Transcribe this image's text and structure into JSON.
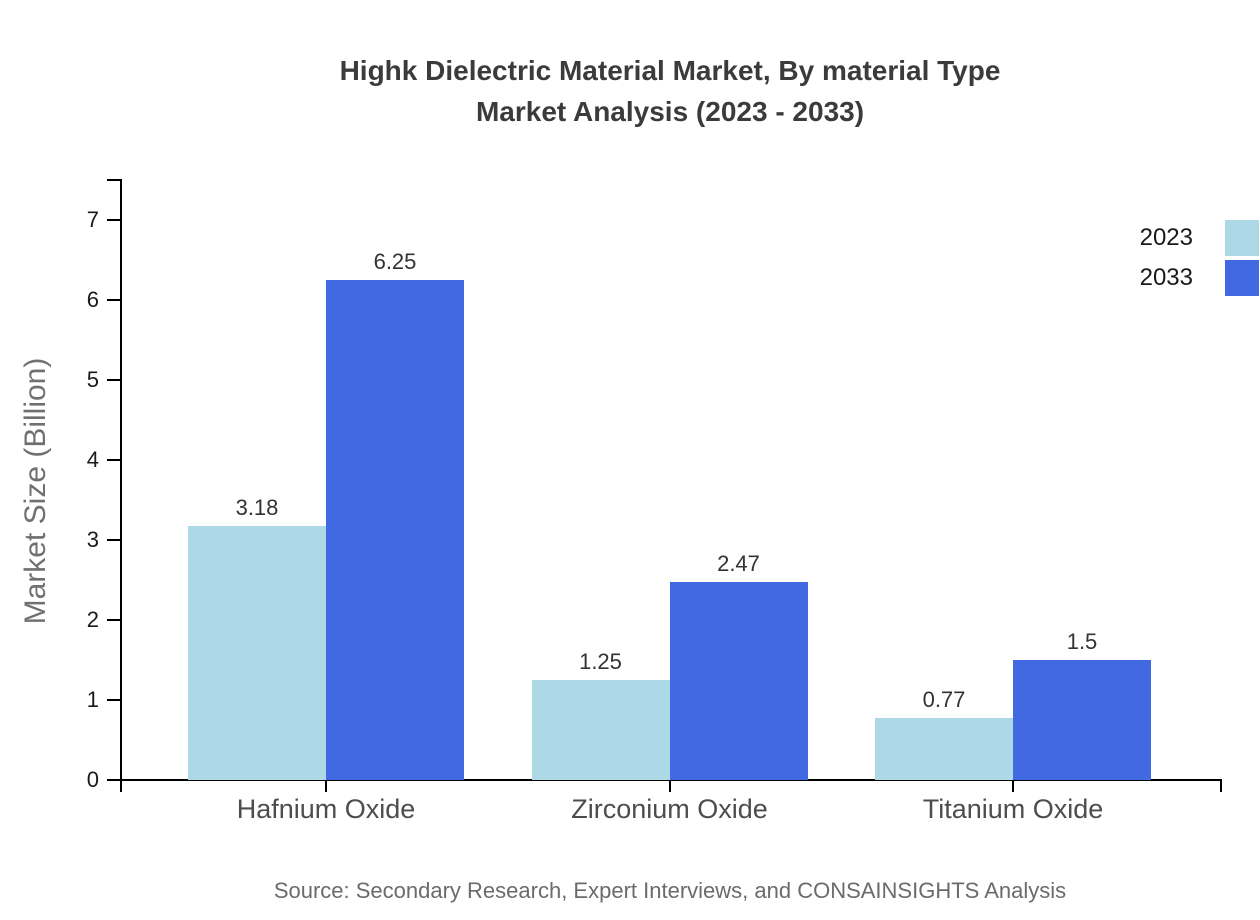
{
  "chart": {
    "title_line1": "Highk Dielectric Material Market, By material Type",
    "title_line2": "Market Analysis (2023 - 2033)",
    "ylabel": "Market Size (Billion)",
    "source": "Source: Secondary Research, Expert Interviews, and CONSAINSIGHTS Analysis"
  },
  "chart_data": {
    "type": "bar",
    "title": "Highk Dielectric Material Market, By material Type Market Analysis (2023 - 2033)",
    "xlabel": "",
    "ylabel": "Market Size (Billion)",
    "categories": [
      "Hafnium Oxide",
      "Zirconium Oxide",
      "Titanium Oxide"
    ],
    "series": [
      {
        "name": "2023",
        "color": "#ADD8E6",
        "values": [
          3.18,
          1.25,
          0.77
        ]
      },
      {
        "name": "2033",
        "color": "#4169E1",
        "values": [
          6.25,
          2.47,
          1.5
        ]
      }
    ],
    "ylim": [
      0,
      7.5
    ],
    "yticks": [
      0,
      1,
      2,
      3,
      4,
      5,
      6,
      7
    ],
    "grid": false,
    "legend_position": "top-right",
    "axis_color": "#000000",
    "source": "Source: Secondary Research, Expert Interviews, and CONSAINSIGHTS Analysis"
  }
}
